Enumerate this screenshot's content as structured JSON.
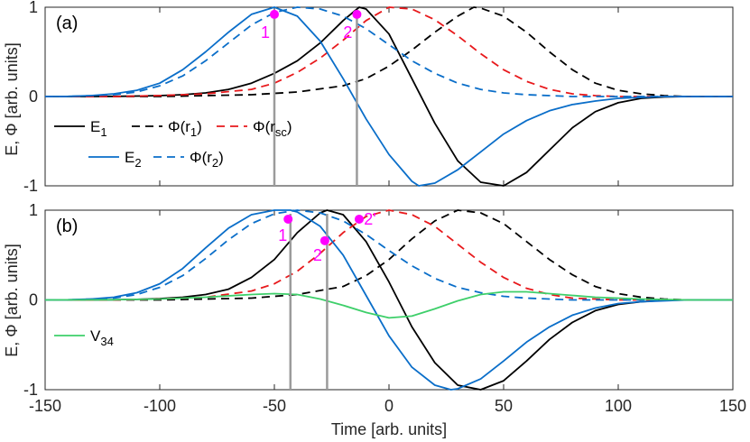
{
  "figure": {
    "ylabel": "E, Φ [arb. units]",
    "xlabel": "Time [arb. units]"
  },
  "colors": {
    "black": "#000000",
    "blue": "#0a6ec9",
    "red": "#e8191c",
    "green": "#3ecf6a",
    "gray": "#9b9b9b",
    "magenta": "#ff00ff"
  },
  "chart_data": [
    {
      "panel_label": "(a)",
      "type": "line",
      "xlim": [
        -150,
        150
      ],
      "ylim": [
        -1,
        1
      ],
      "xticks": [
        -150,
        -100,
        -50,
        0,
        50,
        100,
        150
      ],
      "yticks": [
        -1,
        0,
        1
      ],
      "grid": false,
      "legend": [
        {
          "label": "E1",
          "series": "E1"
        },
        {
          "label": "Φ(r1)",
          "series": "Phi_r1"
        },
        {
          "label": "Φ(rsc)",
          "series": "Phi_rsc"
        },
        {
          "label": "E2",
          "series": "E2"
        },
        {
          "label": "Φ(r2)",
          "series": "Phi_r2"
        }
      ],
      "series": [
        {
          "name": "E1",
          "style": "solid",
          "color": "#000000",
          "x": [
            -150,
            -140,
            -130,
            -120,
            -110,
            -100,
            -90,
            -80,
            -70,
            -60,
            -50,
            -40,
            -30,
            -20,
            -13,
            -10,
            0,
            10,
            20,
            30,
            40,
            50,
            60,
            70,
            80,
            90,
            100,
            110,
            120,
            130,
            140,
            150
          ],
          "y": [
            0,
            0,
            0,
            0.002,
            0.005,
            0.01,
            0.02,
            0.04,
            0.08,
            0.15,
            0.26,
            0.4,
            0.6,
            0.85,
            1,
            0.98,
            0.7,
            0.2,
            -0.3,
            -0.72,
            -0.96,
            -1,
            -0.85,
            -0.6,
            -0.35,
            -0.17,
            -0.07,
            -0.02,
            -0.005,
            0,
            0,
            0
          ]
        },
        {
          "name": "Φ(r1)",
          "style": "dashed",
          "color": "#000000",
          "x": [
            -150,
            -120,
            -100,
            -80,
            -60,
            -40,
            -20,
            -10,
            0,
            10,
            20,
            30,
            37,
            40,
            50,
            60,
            70,
            80,
            90,
            100,
            110,
            120,
            130,
            150
          ],
          "y": [
            0,
            0,
            0,
            0.01,
            0.02,
            0.05,
            0.12,
            0.2,
            0.34,
            0.52,
            0.72,
            0.9,
            1,
            0.99,
            0.9,
            0.72,
            0.5,
            0.3,
            0.15,
            0.07,
            0.03,
            0.01,
            0,
            0
          ]
        },
        {
          "name": "Φ(rsc)",
          "style": "dashed",
          "color": "#e8191c",
          "x": [
            -150,
            -120,
            -100,
            -80,
            -60,
            -50,
            -40,
            -30,
            -20,
            -10,
            0,
            10,
            20,
            30,
            40,
            50,
            60,
            70,
            80,
            90,
            100,
            110,
            120,
            150
          ],
          "y": [
            0,
            0,
            0.01,
            0.03,
            0.08,
            0.15,
            0.27,
            0.43,
            0.63,
            0.85,
            1,
            0.98,
            0.86,
            0.68,
            0.48,
            0.3,
            0.17,
            0.08,
            0.03,
            0.01,
            0,
            0,
            0,
            0
          ]
        },
        {
          "name": "E2",
          "style": "solid",
          "color": "#0a6ec9",
          "x": [
            -150,
            -140,
            -130,
            -120,
            -110,
            -100,
            -90,
            -80,
            -70,
            -60,
            -50,
            -40,
            -30,
            -20,
            -10,
            0,
            10,
            13,
            20,
            30,
            40,
            50,
            60,
            70,
            80,
            90,
            100,
            110,
            120,
            130,
            140,
            150
          ],
          "y": [
            0,
            0.002,
            0.01,
            0.03,
            0.07,
            0.15,
            0.3,
            0.5,
            0.72,
            0.92,
            1,
            0.9,
            0.62,
            0.2,
            -0.25,
            -0.65,
            -0.95,
            -1,
            -0.97,
            -0.82,
            -0.62,
            -0.42,
            -0.27,
            -0.16,
            -0.09,
            -0.05,
            -0.02,
            -0.01,
            0,
            0,
            0,
            0
          ]
        },
        {
          "name": "Φ(r2)",
          "style": "dashed",
          "color": "#0a6ec9",
          "x": [
            -150,
            -140,
            -130,
            -120,
            -110,
            -100,
            -90,
            -80,
            -70,
            -60,
            -50,
            -40,
            -30,
            -20,
            -10,
            0,
            10,
            20,
            30,
            40,
            50,
            60,
            70,
            80,
            90,
            100,
            110,
            120,
            130,
            150
          ],
          "y": [
            0,
            0,
            0.01,
            0.02,
            0.05,
            0.12,
            0.23,
            0.4,
            0.6,
            0.8,
            0.94,
            1,
            0.98,
            0.9,
            0.76,
            0.58,
            0.4,
            0.26,
            0.15,
            0.08,
            0.04,
            0.02,
            0.01,
            0,
            0,
            0,
            0,
            0,
            0,
            0
          ]
        }
      ],
      "markers": [
        {
          "label": "1",
          "x": -50,
          "y": 0.92
        },
        {
          "label": "2",
          "x": -14,
          "y": 0.92
        }
      ],
      "vlines": [
        -50,
        -14
      ]
    },
    {
      "panel_label": "(b)",
      "type": "line",
      "xlim": [
        -150,
        150
      ],
      "ylim": [
        -1,
        1
      ],
      "xticks": [
        -150,
        -100,
        -50,
        0,
        50,
        100,
        150
      ],
      "xtick_labels": [
        "-150",
        "-100",
        "-50",
        "0",
        "50",
        "100",
        "150"
      ],
      "yticks": [
        -1,
        0,
        1
      ],
      "grid": false,
      "legend": [
        {
          "label": "V34",
          "series": "V34"
        }
      ],
      "series": [
        {
          "name": "E1",
          "style": "solid",
          "color": "#000000",
          "x": [
            -150,
            -140,
            -130,
            -120,
            -110,
            -100,
            -90,
            -80,
            -70,
            -60,
            -50,
            -40,
            -30,
            -27,
            -20,
            -10,
            0,
            10,
            20,
            30,
            40,
            50,
            60,
            70,
            80,
            90,
            100,
            110,
            120,
            130,
            140,
            150
          ],
          "y": [
            0,
            0,
            0,
            0.002,
            0.006,
            0.015,
            0.03,
            0.06,
            0.12,
            0.25,
            0.45,
            0.75,
            0.97,
            1,
            0.95,
            0.65,
            0.2,
            -0.3,
            -0.7,
            -0.95,
            -1,
            -0.9,
            -0.68,
            -0.44,
            -0.25,
            -0.12,
            -0.05,
            -0.02,
            -0.005,
            0,
            0,
            0
          ]
        },
        {
          "name": "Φ(r1)",
          "style": "dashed",
          "color": "#000000",
          "x": [
            -150,
            -120,
            -100,
            -80,
            -60,
            -40,
            -20,
            -10,
            0,
            10,
            20,
            30,
            40,
            50,
            60,
            70,
            80,
            90,
            100,
            110,
            120,
            130,
            150
          ],
          "y": [
            0,
            0,
            0,
            0.01,
            0.02,
            0.06,
            0.15,
            0.27,
            0.45,
            0.68,
            0.88,
            1,
            0.97,
            0.85,
            0.65,
            0.45,
            0.28,
            0.15,
            0.07,
            0.03,
            0.01,
            0,
            0
          ]
        },
        {
          "name": "Φ(rsc)",
          "style": "dashed",
          "color": "#e8191c",
          "x": [
            -150,
            -120,
            -100,
            -80,
            -60,
            -50,
            -40,
            -30,
            -20,
            -10,
            0,
            10,
            20,
            30,
            40,
            50,
            60,
            70,
            80,
            90,
            100,
            120,
            150
          ],
          "y": [
            0,
            0,
            0.01,
            0.03,
            0.1,
            0.18,
            0.32,
            0.52,
            0.75,
            0.93,
            1,
            0.95,
            0.82,
            0.62,
            0.42,
            0.25,
            0.13,
            0.06,
            0.02,
            0.01,
            0,
            0,
            0
          ]
        },
        {
          "name": "E2",
          "style": "solid",
          "color": "#0a6ec9",
          "x": [
            -150,
            -140,
            -130,
            -120,
            -110,
            -100,
            -90,
            -80,
            -70,
            -60,
            -50,
            -43,
            -40,
            -30,
            -20,
            -10,
            0,
            10,
            20,
            27,
            30,
            40,
            50,
            60,
            70,
            80,
            90,
            100,
            110,
            120,
            130,
            150
          ],
          "y": [
            0,
            0.002,
            0.01,
            0.03,
            0.08,
            0.18,
            0.35,
            0.58,
            0.8,
            0.95,
            1,
            1,
            0.98,
            0.82,
            0.5,
            0.05,
            -0.4,
            -0.75,
            -0.95,
            -1,
            -0.99,
            -0.88,
            -0.68,
            -0.47,
            -0.3,
            -0.17,
            -0.09,
            -0.04,
            -0.02,
            -0.01,
            0,
            0
          ]
        },
        {
          "name": "Φ(r2)",
          "style": "dashed",
          "color": "#0a6ec9",
          "x": [
            -150,
            -140,
            -130,
            -120,
            -110,
            -100,
            -90,
            -80,
            -70,
            -60,
            -50,
            -40,
            -30,
            -20,
            -10,
            0,
            10,
            20,
            30,
            40,
            50,
            60,
            70,
            80,
            90,
            100,
            110,
            120,
            130,
            150
          ],
          "y": [
            0,
            0,
            0.01,
            0.02,
            0.06,
            0.14,
            0.27,
            0.46,
            0.67,
            0.85,
            0.96,
            1,
            0.97,
            0.88,
            0.73,
            0.55,
            0.38,
            0.24,
            0.14,
            0.08,
            0.04,
            0.02,
            0.01,
            0,
            0,
            0,
            0,
            0,
            0,
            0
          ]
        },
        {
          "name": "V34",
          "style": "solid",
          "color": "#3ecf6a",
          "x": [
            -150,
            -120,
            -100,
            -80,
            -60,
            -50,
            -40,
            -30,
            -20,
            -10,
            0,
            10,
            20,
            30,
            40,
            50,
            60,
            70,
            80,
            90,
            100,
            110,
            120,
            130,
            140,
            150
          ],
          "y": [
            0,
            0.002,
            0.01,
            0.03,
            0.06,
            0.07,
            0.06,
            0.01,
            -0.06,
            -0.14,
            -0.2,
            -0.18,
            -0.1,
            -0.01,
            0.06,
            0.09,
            0.09,
            0.07,
            0.05,
            0.03,
            0.02,
            0.01,
            0.005,
            0,
            0,
            0
          ]
        }
      ],
      "markers": [
        {
          "label": "1",
          "x": -44,
          "y": 0.9
        },
        {
          "label": "2",
          "x": -28,
          "y": 0.66
        },
        {
          "label": "2'",
          "x": -13,
          "y": 0.9
        }
      ],
      "vlines": [
        -43,
        -27
      ]
    }
  ]
}
